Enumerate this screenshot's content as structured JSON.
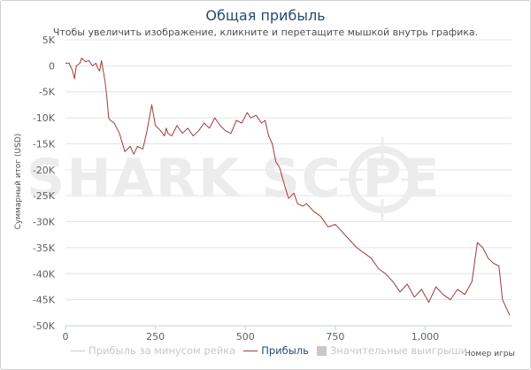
{
  "title": "Общая прибыль",
  "subtitle": "Чтобы увеличить изображение, кликните и перетащите мышкой внутрь графика.",
  "watermark": "SHARK SC  PE",
  "colors": {
    "profit_line": "#a23a3a",
    "without_rake_line": "#cccccc",
    "significant_wins": "#c8c8c8",
    "grid": "#e4e4e4",
    "title": "#274b6d"
  },
  "legend": [
    {
      "label": "Прибыль за минусом рейка",
      "color": "#cccccc",
      "kind": "line",
      "muted": true
    },
    {
      "label": "Прибыль",
      "color": "#a23a3a",
      "kind": "line",
      "muted": false
    },
    {
      "label": "Значительные выигрыши",
      "color": "#c8c8c8",
      "kind": "box",
      "muted": true
    }
  ],
  "chart_data": {
    "type": "line",
    "title": "Общая прибыль",
    "xlabel": "Номер игры",
    "ylabel": "Суммарный итог (USD)",
    "xlim": [
      0,
      1240
    ],
    "ylim": [
      -50000,
      5000
    ],
    "x_ticks": [
      0,
      250,
      500,
      750,
      1000
    ],
    "x_tick_labels": [
      "0",
      "250",
      "500",
      "750",
      "1,000"
    ],
    "y_ticks": [
      5000,
      0,
      -5000,
      -10000,
      -15000,
      -20000,
      -25000,
      -30000,
      -35000,
      -40000,
      -45000,
      -50000
    ],
    "y_tick_labels": [
      "5K",
      "0",
      "-5K",
      "-10K",
      "-15K",
      "-20K",
      "-25K",
      "-30K",
      "-35K",
      "-40K",
      "-45K",
      "-50K"
    ],
    "grid": true,
    "series": [
      {
        "name": "Прибыль",
        "x": [
          0,
          10,
          20,
          25,
          30,
          40,
          45,
          55,
          65,
          75,
          85,
          90,
          95,
          100,
          105,
          110,
          115,
          120,
          125,
          135,
          150,
          165,
          180,
          190,
          200,
          215,
          225,
          240,
          250,
          265,
          275,
          280,
          285,
          295,
          310,
          325,
          340,
          355,
          370,
          385,
          400,
          415,
          430,
          445,
          460,
          475,
          490,
          505,
          515,
          530,
          545,
          555,
          565,
          575,
          585,
          595,
          605,
          620,
          635,
          645,
          660,
          670,
          690,
          710,
          730,
          750,
          770,
          790,
          810,
          830,
          850,
          870,
          890,
          910,
          930,
          950,
          970,
          990,
          1010,
          1030,
          1050,
          1070,
          1090,
          1110,
          1130,
          1145,
          1160,
          1175,
          1190,
          1205,
          1215,
          1225,
          1235
        ],
        "y": [
          500,
          500,
          -1000,
          -2500,
          0,
          500,
          1500,
          800,
          1000,
          0,
          500,
          -500,
          -1000,
          1000,
          -1000,
          -3000,
          -6000,
          -10000,
          -10500,
          -11000,
          -13000,
          -16500,
          -15500,
          -17000,
          -15500,
          -16000,
          -13000,
          -7500,
          -11500,
          -12500,
          -13500,
          -12000,
          -13000,
          -13500,
          -11500,
          -13000,
          -12000,
          -13500,
          -12500,
          -11000,
          -12000,
          -10000,
          -11500,
          -12500,
          -13000,
          -10500,
          -11000,
          -9000,
          -10000,
          -9500,
          -11000,
          -10500,
          -13500,
          -15000,
          -18500,
          -19500,
          -22000,
          -25500,
          -24500,
          -26500,
          -27000,
          -26500,
          -28000,
          -29000,
          -31000,
          -30500,
          -32000,
          -33500,
          -35000,
          -36000,
          -37000,
          -39000,
          -40000,
          -41500,
          -43500,
          -42000,
          -44500,
          -43000,
          -45500,
          -42500,
          -44000,
          -45000,
          -43000,
          -44000,
          -41500,
          -34000,
          -35000,
          -37000,
          -38000,
          -38500,
          -45000,
          -46500,
          -48000
        ]
      }
    ]
  }
}
